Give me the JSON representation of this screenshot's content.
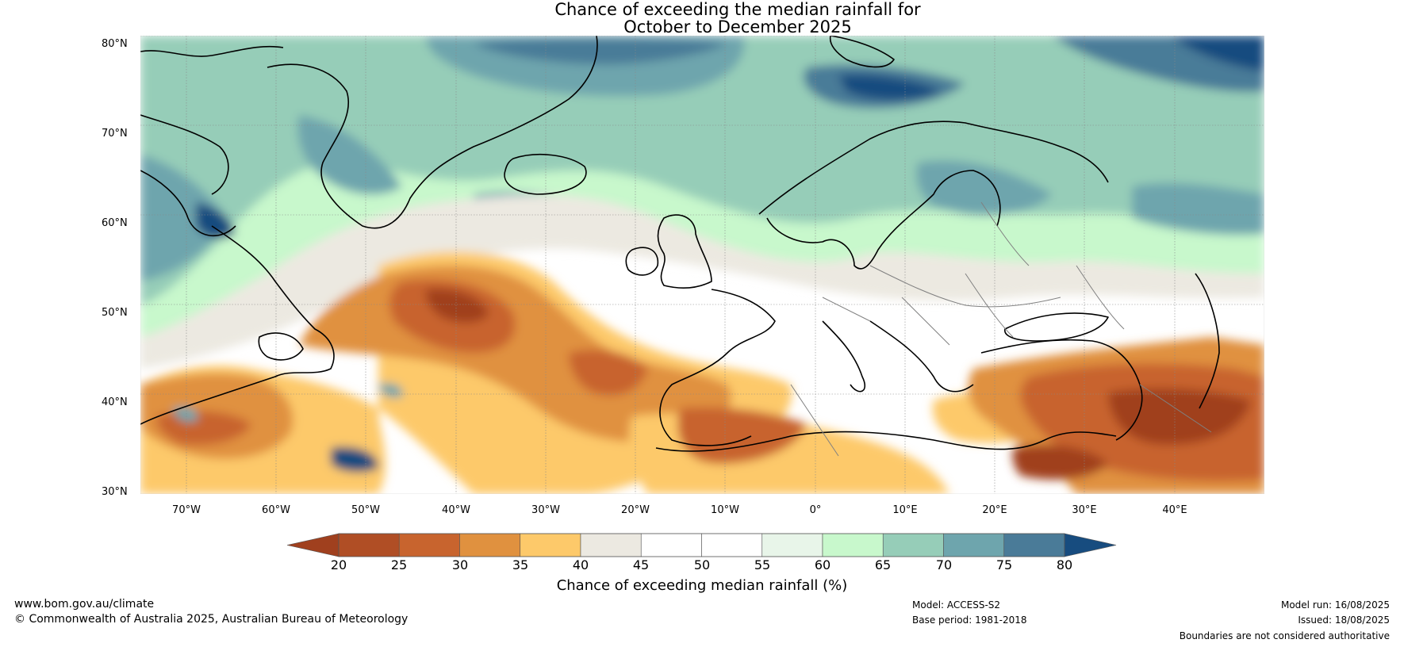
{
  "title": {
    "line1": "Chance of exceeding the median rainfall for",
    "line2": "October to December 2025"
  },
  "map": {
    "lat_labels": [
      "80°N",
      "70°N",
      "60°N",
      "50°N",
      "40°N",
      "30°N"
    ],
    "lon_labels": [
      "70°W",
      "60°W",
      "50°W",
      "40°W",
      "30°W",
      "20°W",
      "10°W",
      "0°",
      "10°E",
      "20°E",
      "30°E",
      "40°E"
    ],
    "region": "North Atlantic, Greenland and Europe",
    "colors": {
      "ocean_neutral": "#ffffff",
      "coastline": "#000000",
      "border": "#808080",
      "grid": "#888888"
    }
  },
  "colorbar": {
    "ticks": [
      "20",
      "25",
      "30",
      "35",
      "40",
      "45",
      "50",
      "55",
      "60",
      "65",
      "70",
      "75",
      "80"
    ],
    "colors": [
      "#a0401e",
      "#b04e25",
      "#c8642e",
      "#e0913f",
      "#fdc96a",
      "#ece9e1",
      "#ffffff",
      "#ffffff",
      "#e8f5e9",
      "#c8f8cc",
      "#96cdb8",
      "#6ea5ad",
      "#4a7b98",
      "#174c7f"
    ],
    "label": "Chance of exceeding median rainfall (%)"
  },
  "footer": {
    "website": "www.bom.gov.au/climate",
    "copyright": "© Commonwealth of Australia 2025, Australian Bureau of Meteorology",
    "model": "Model: ACCESS-S2",
    "base_period": "Base period: 1981-2018",
    "model_run": "Model run: 16/08/2025",
    "issued": "Issued: 18/08/2025",
    "disclaimer": "Boundaries are not considered authoritative"
  }
}
